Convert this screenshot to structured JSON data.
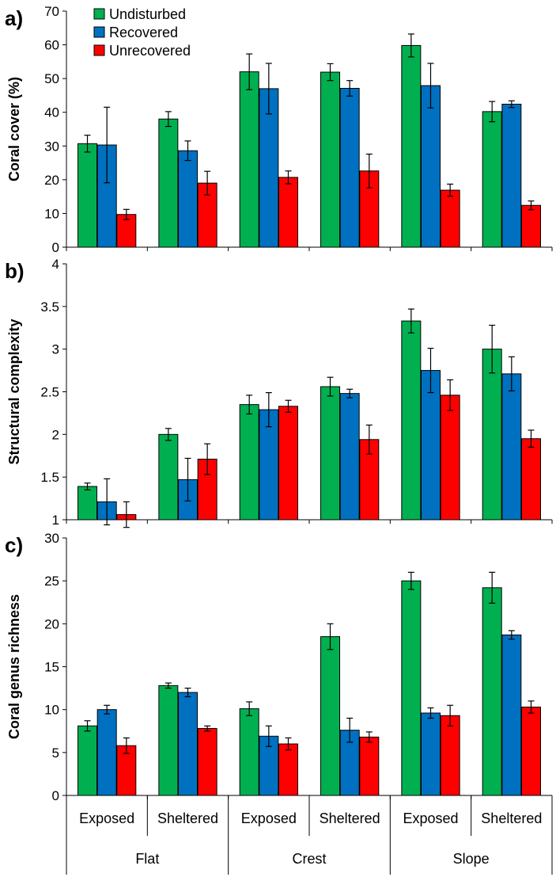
{
  "colors": {
    "Undisturbed": "#00b050",
    "Recovered": "#0070c0",
    "Unrecovered": "#ff0000"
  },
  "chart_data": [
    {
      "type": "bar",
      "panel_label": "a)",
      "ylabel": "Coral cover (%)",
      "ylim": [
        0,
        70
      ],
      "yticks": [
        0,
        10,
        20,
        30,
        40,
        50,
        60,
        70
      ],
      "ytick_labels": [
        "0",
        "10",
        "20",
        "30",
        "40",
        "50",
        "60",
        "70"
      ],
      "legend": {
        "placement": "top-left",
        "entries": [
          "Undisturbed",
          "Recovered",
          "Unrecovered"
        ]
      },
      "categories": [
        "Flat Exposed",
        "Flat Sheltered",
        "Crest Exposed",
        "Crest Sheltered",
        "Slope Exposed",
        "Slope Sheltered"
      ],
      "series": [
        {
          "name": "Undisturbed",
          "values": [
            30.7,
            38.0,
            52.0,
            51.9,
            59.8,
            40.2
          ],
          "errors": [
            2.5,
            2.2,
            5.3,
            2.5,
            3.4,
            3.0
          ]
        },
        {
          "name": "Recovered",
          "values": [
            30.3,
            28.6,
            47.0,
            47.1,
            47.9,
            42.4
          ],
          "errors": [
            11.2,
            2.9,
            7.5,
            2.3,
            6.6,
            1.0
          ]
        },
        {
          "name": "Unrecovered",
          "values": [
            9.7,
            19.0,
            20.7,
            22.6,
            16.9,
            12.4
          ],
          "errors": [
            1.5,
            3.5,
            1.9,
            5.0,
            1.8,
            1.3
          ]
        }
      ]
    },
    {
      "type": "bar",
      "panel_label": "b)",
      "ylabel": "Structural complexity",
      "ylim": [
        1,
        4
      ],
      "yticks": [
        1,
        1.5,
        2,
        2.5,
        3,
        3.5,
        4
      ],
      "ytick_labels": [
        "1",
        "1.5",
        "2",
        "2.5",
        "3",
        "3.5",
        "4"
      ],
      "categories": [
        "Flat Exposed",
        "Flat Sheltered",
        "Crest Exposed",
        "Crest Sheltered",
        "Slope Exposed",
        "Slope Sheltered"
      ],
      "series": [
        {
          "name": "Undisturbed",
          "values": [
            1.39,
            2.0,
            2.35,
            2.56,
            3.33,
            3.0
          ],
          "errors": [
            0.04,
            0.07,
            0.11,
            0.11,
            0.14,
            0.28
          ]
        },
        {
          "name": "Recovered",
          "values": [
            1.21,
            1.47,
            2.29,
            2.48,
            2.75,
            2.71
          ],
          "errors": [
            0.27,
            0.25,
            0.2,
            0.05,
            0.26,
            0.2
          ]
        },
        {
          "name": "Unrecovered",
          "values": [
            1.06,
            1.71,
            2.33,
            1.94,
            2.46,
            1.95
          ],
          "errors": [
            0.15,
            0.18,
            0.07,
            0.17,
            0.18,
            0.1
          ]
        }
      ]
    },
    {
      "type": "bar",
      "panel_label": "c)",
      "ylabel": "Coral genus richness",
      "ylim": [
        0,
        30
      ],
      "yticks": [
        0,
        5,
        10,
        15,
        20,
        25,
        30
      ],
      "ytick_labels": [
        "0",
        "5",
        "10",
        "15",
        "20",
        "25",
        "30"
      ],
      "categories": [
        "Flat Exposed",
        "Flat Sheltered",
        "Crest Exposed",
        "Crest Sheltered",
        "Slope Exposed",
        "Slope Sheltered"
      ],
      "series": [
        {
          "name": "Undisturbed",
          "values": [
            8.1,
            12.8,
            10.1,
            18.5,
            25.0,
            24.2
          ],
          "errors": [
            0.6,
            0.3,
            0.8,
            1.5,
            1.0,
            1.8
          ]
        },
        {
          "name": "Recovered",
          "values": [
            10.0,
            12.0,
            6.9,
            7.6,
            9.6,
            18.7
          ],
          "errors": [
            0.5,
            0.5,
            1.2,
            1.4,
            0.6,
            0.5
          ]
        },
        {
          "name": "Unrecovered",
          "values": [
            5.8,
            7.8,
            6.0,
            6.8,
            9.3,
            10.3
          ],
          "errors": [
            0.9,
            0.3,
            0.7,
            0.6,
            1.2,
            0.7
          ]
        }
      ]
    }
  ],
  "x_axis": {
    "exposure_labels": [
      "Exposed",
      "Sheltered",
      "Exposed",
      "Sheltered",
      "Exposed",
      "Sheltered"
    ],
    "zone_labels": [
      "Flat",
      "Crest",
      "Slope"
    ]
  }
}
